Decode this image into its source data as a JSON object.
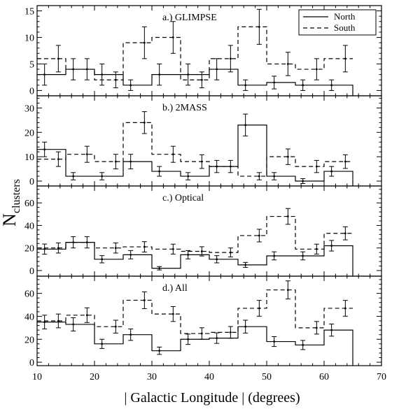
{
  "figure": {
    "ylabel_main": "N",
    "ylabel_sub": "clusters",
    "xlabel": "| Galactic Longitude | (degrees)",
    "x_ticks": [
      "10",
      "20",
      "30",
      "40",
      "50",
      "60",
      "70"
    ],
    "legend": {
      "north": "North",
      "south": "South"
    }
  },
  "chart_data": [
    {
      "type": "line",
      "step": true,
      "title": "a.) GLIMPSE",
      "xlim": [
        10,
        70
      ],
      "ylim": [
        -1,
        16
      ],
      "yticks": [
        0,
        5,
        10,
        15
      ],
      "legend_position": "top-right",
      "bin_edges": [
        10,
        15,
        20,
        25,
        30,
        35,
        40,
        45,
        50,
        55,
        60,
        65
      ],
      "series": [
        {
          "name": "North",
          "style": "solid",
          "values": [
            3,
            4,
            3,
            1,
            3,
            3,
            4,
            1,
            1.5,
            1,
            1
          ],
          "errors": [
            2,
            2,
            2,
            1,
            2,
            2,
            2,
            1,
            1.2,
            1,
            1
          ]
        },
        {
          "name": "South",
          "style": "dashed",
          "values": [
            6,
            4,
            2,
            9,
            10,
            2,
            6,
            12,
            5,
            4,
            6
          ],
          "errors": [
            2.5,
            2,
            1.5,
            3,
            3,
            1.5,
            2.5,
            3.3,
            2.2,
            2,
            2.5
          ]
        }
      ]
    },
    {
      "type": "line",
      "step": true,
      "title": "b.) 2MASS",
      "xlim": [
        10,
        70
      ],
      "ylim": [
        -2,
        35
      ],
      "yticks": [
        0,
        10,
        20,
        30
      ],
      "bin_edges": [
        10,
        15,
        20,
        25,
        30,
        35,
        40,
        45,
        50,
        55,
        60,
        65
      ],
      "series": [
        {
          "name": "North",
          "style": "solid",
          "values": [
            13,
            2,
            2,
            8,
            4,
            2,
            6,
            23,
            2,
            0,
            4
          ],
          "errors": [
            3,
            1.5,
            1.5,
            3,
            2,
            1.5,
            2.5,
            4.5,
            1.5,
            1,
            2
          ]
        },
        {
          "name": "South",
          "style": "dashed",
          "values": [
            9,
            11,
            8,
            24,
            11,
            8,
            6,
            2,
            10,
            6,
            8
          ],
          "errors": [
            3,
            3.3,
            3,
            4.5,
            3.3,
            2.8,
            2.5,
            1.5,
            3.2,
            2.5,
            2.8
          ]
        }
      ]
    },
    {
      "type": "line",
      "step": true,
      "title": "c.) Optical",
      "xlim": [
        10,
        70
      ],
      "ylim": [
        -5,
        75
      ],
      "yticks": [
        0,
        20,
        40,
        60
      ],
      "bin_edges": [
        10,
        15,
        20,
        25,
        30,
        35,
        40,
        45,
        50,
        55,
        60,
        65
      ],
      "series": [
        {
          "name": "North",
          "style": "solid",
          "values": [
            19,
            25,
            10,
            14,
            2,
            14,
            10,
            5,
            13,
            13,
            22
          ],
          "errors": [
            4.5,
            5,
            3.2,
            3.7,
            1.5,
            3.7,
            3.2,
            2.2,
            3.6,
            3.6,
            4.7
          ]
        },
        {
          "name": "South",
          "style": "dashed",
          "values": [
            20,
            25,
            20,
            21,
            19,
            17,
            16,
            31,
            48,
            19,
            33
          ],
          "errors": [
            4.5,
            5,
            4.5,
            4.6,
            4.4,
            4.1,
            4,
            5.6,
            7,
            4.4,
            5.8
          ]
        }
      ]
    },
    {
      "type": "line",
      "step": true,
      "title": "d.) All",
      "xlim": [
        10,
        70
      ],
      "ylim": [
        -3,
        75
      ],
      "yticks": [
        0,
        20,
        40,
        60
      ],
      "bin_edges": [
        10,
        15,
        20,
        25,
        30,
        35,
        40,
        45,
        50,
        55,
        60,
        65
      ],
      "series": [
        {
          "name": "North",
          "style": "solid",
          "values": [
            35,
            33,
            16,
            24,
            10,
            20,
            21,
            31,
            18,
            15,
            28
          ],
          "errors": [
            6,
            5.8,
            4,
            5,
            3.2,
            4.5,
            4.6,
            5.6,
            4.3,
            4,
            5.3
          ]
        },
        {
          "name": "South",
          "style": "dashed",
          "values": [
            36,
            41,
            31,
            54,
            42,
            25,
            26,
            47,
            63,
            30,
            47
          ],
          "errors": [
            6,
            6.4,
            5.6,
            7.3,
            6.5,
            5,
            5.1,
            6.9,
            7.9,
            5.5,
            6.9
          ]
        }
      ]
    }
  ]
}
